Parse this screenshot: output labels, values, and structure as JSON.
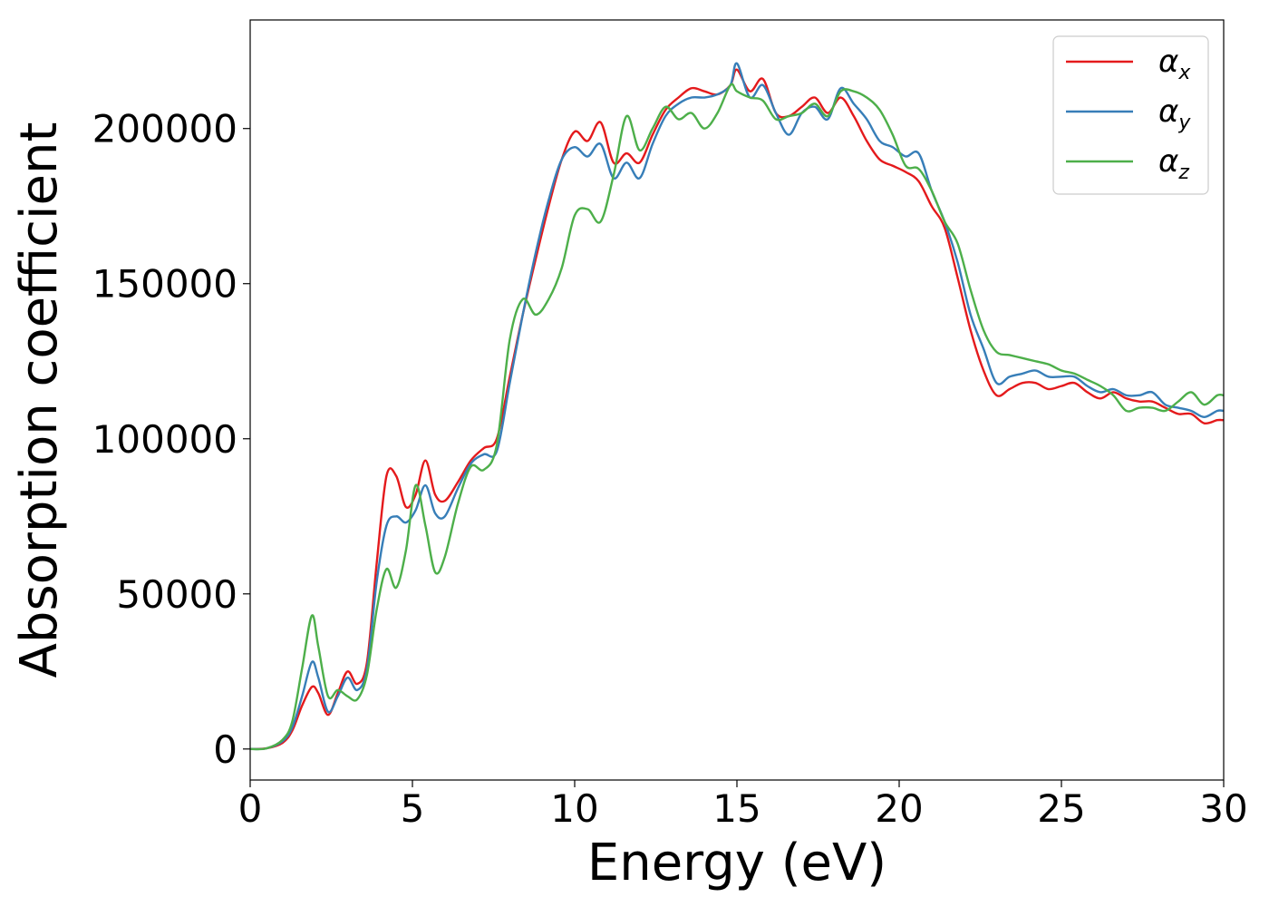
{
  "chart_data": {
    "type": "line",
    "xlabel": "Energy (eV)",
    "ylabel": "Absorption coefficient",
    "xlim": [
      0,
      30
    ],
    "ylim": [
      -10000,
      235000
    ],
    "xticks": [
      0,
      5,
      10,
      15,
      20,
      25,
      30
    ],
    "yticks": [
      0,
      50000,
      100000,
      150000,
      200000
    ],
    "xtick_labels": [
      "0",
      "5",
      "10",
      "15",
      "20",
      "25",
      "30"
    ],
    "ytick_labels": [
      "0",
      "50000",
      "100000",
      "150000",
      "200000"
    ],
    "grid": false,
    "legend_position": "top-right",
    "x": [
      0,
      0.5,
      1.0,
      1.3,
      1.6,
      1.9,
      2.1,
      2.4,
      2.7,
      3.0,
      3.3,
      3.6,
      3.9,
      4.2,
      4.5,
      4.8,
      5.1,
      5.4,
      5.7,
      6.0,
      6.4,
      6.8,
      7.2,
      7.6,
      8.0,
      8.4,
      8.8,
      9.2,
      9.6,
      10.0,
      10.4,
      10.8,
      11.2,
      11.6,
      12.0,
      12.4,
      12.8,
      13.2,
      13.6,
      14.0,
      14.4,
      14.8,
      15.0,
      15.4,
      15.8,
      16.2,
      16.6,
      17.0,
      17.4,
      17.8,
      18.2,
      18.6,
      19.0,
      19.4,
      19.8,
      20.2,
      20.6,
      21.0,
      21.4,
      21.8,
      22.2,
      22.6,
      23.0,
      23.4,
      23.8,
      24.2,
      24.6,
      25.0,
      25.4,
      25.8,
      26.2,
      26.6,
      27.0,
      27.4,
      27.8,
      28.2,
      28.6,
      29.0,
      29.4,
      29.8,
      30.0
    ],
    "series": [
      {
        "name": "α_x",
        "label_main": "α",
        "label_sub": "x",
        "color": "#e41a1c",
        "values": [
          0,
          200,
          2000,
          6000,
          14000,
          20000,
          18000,
          11000,
          18000,
          25000,
          21000,
          28000,
          60000,
          88000,
          88000,
          78000,
          82000,
          93000,
          82000,
          80000,
          86000,
          93000,
          97000,
          100000,
          120000,
          140000,
          158000,
          175000,
          190000,
          199000,
          196000,
          202000,
          189000,
          192000,
          189000,
          198000,
          206000,
          210000,
          213000,
          212000,
          211000,
          214000,
          219000,
          212000,
          216000,
          205000,
          204000,
          207000,
          210000,
          205000,
          210000,
          204000,
          196000,
          190000,
          188000,
          186000,
          183000,
          175000,
          168000,
          152000,
          135000,
          122000,
          114000,
          116000,
          118000,
          118000,
          116000,
          117000,
          118000,
          115000,
          113000,
          115000,
          113000,
          112000,
          112000,
          110000,
          108000,
          108000,
          105000,
          106000,
          106000
        ]
      },
      {
        "name": "α_y",
        "label_main": "α",
        "label_sub": "y",
        "color": "#377eb8",
        "values": [
          0,
          200,
          2500,
          7000,
          17000,
          28000,
          23000,
          12000,
          17000,
          23000,
          19000,
          26000,
          54000,
          72000,
          75000,
          73000,
          77000,
          85000,
          76000,
          75000,
          84000,
          92000,
          95000,
          96000,
          118000,
          140000,
          160000,
          177000,
          190000,
          194000,
          191000,
          195000,
          184000,
          189000,
          184000,
          195000,
          204000,
          208000,
          210000,
          210000,
          211000,
          214000,
          221000,
          210000,
          214000,
          205000,
          198000,
          205000,
          207000,
          203000,
          213000,
          208000,
          203000,
          196000,
          194000,
          191000,
          192000,
          180000,
          170000,
          157000,
          140000,
          129000,
          118000,
          120000,
          121000,
          122000,
          120000,
          120000,
          120000,
          117000,
          115000,
          116000,
          114000,
          114000,
          115000,
          111000,
          110000,
          109000,
          107000,
          109000,
          109000
        ]
      },
      {
        "name": "α_z",
        "label_main": "α",
        "label_sub": "z",
        "color": "#4daf4a",
        "values": [
          0,
          200,
          3000,
          9000,
          26000,
          43000,
          33000,
          17000,
          19000,
          17000,
          16000,
          24000,
          45000,
          58000,
          52000,
          64000,
          85000,
          72000,
          57000,
          62000,
          79000,
          91000,
          90000,
          98000,
          132000,
          145000,
          140000,
          145000,
          155000,
          172000,
          174000,
          170000,
          185000,
          204000,
          193000,
          200000,
          207000,
          203000,
          205000,
          200000,
          205000,
          214000,
          212000,
          210000,
          209000,
          203000,
          204000,
          205000,
          208000,
          204000,
          212000,
          212000,
          210000,
          206000,
          198000,
          188000,
          187000,
          180000,
          170000,
          163000,
          148000,
          135000,
          128000,
          127000,
          126000,
          125000,
          124000,
          122000,
          121000,
          119000,
          117000,
          114000,
          109000,
          110000,
          110000,
          109000,
          112000,
          115000,
          111000,
          114000,
          114000
        ]
      }
    ]
  }
}
